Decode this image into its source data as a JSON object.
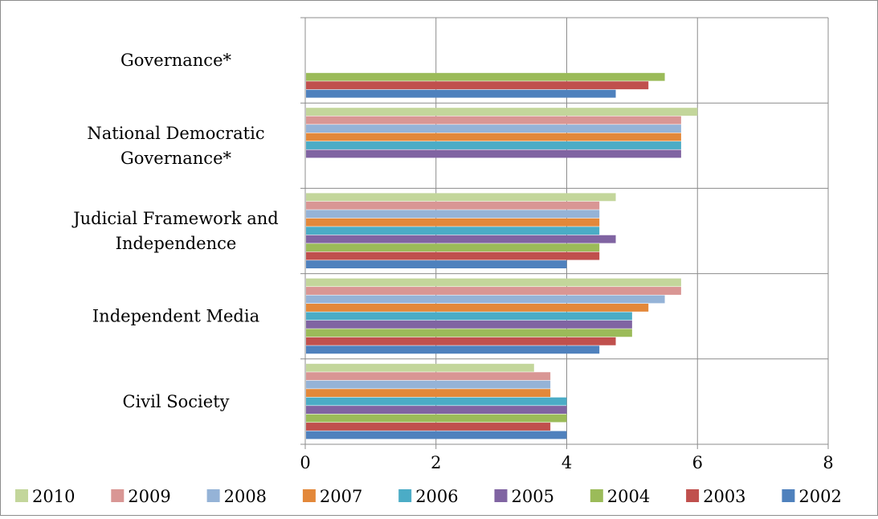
{
  "chart_data": {
    "type": "bar",
    "orientation": "horizontal",
    "title": "",
    "xlabel": "",
    "ylabel": "",
    "xlim": [
      0,
      8
    ],
    "x_ticks": [
      "0",
      "2",
      "4",
      "6",
      "8"
    ],
    "grid": "vertical-and-category-separators",
    "legend_position": "bottom",
    "categories": [
      "Governance*",
      "National Democratic Governance*",
      "Judicial Framework and Independence",
      "Independent Media",
      "Civil Society"
    ],
    "category_label_lines": [
      [
        "Governance*"
      ],
      [
        "National Democratic",
        "Governance*"
      ],
      [
        "Judicial Framework and",
        "Independence"
      ],
      [
        "Independent Media"
      ],
      [
        "Civil Society"
      ]
    ],
    "series": [
      {
        "name": "2010",
        "color": "#c3d69b",
        "values": [
          null,
          6.0,
          4.75,
          5.75,
          3.5
        ]
      },
      {
        "name": "2009",
        "color": "#d99694",
        "values": [
          null,
          5.75,
          4.5,
          5.75,
          3.75
        ]
      },
      {
        "name": "2008",
        "color": "#95b3d7",
        "values": [
          null,
          5.75,
          4.5,
          5.5,
          3.75
        ]
      },
      {
        "name": "2007",
        "color": "#e3883a",
        "values": [
          null,
          5.75,
          4.5,
          5.25,
          3.75
        ]
      },
      {
        "name": "2006",
        "color": "#4bacc6",
        "values": [
          null,
          5.75,
          4.5,
          5.0,
          4.0
        ]
      },
      {
        "name": "2005",
        "color": "#8064a2",
        "values": [
          null,
          5.75,
          4.75,
          5.0,
          4.0
        ]
      },
      {
        "name": "2004",
        "color": "#9bbb59",
        "values": [
          5.5,
          null,
          4.5,
          5.0,
          4.0
        ]
      },
      {
        "name": "2003",
        "color": "#c0504d",
        "values": [
          5.25,
          null,
          4.5,
          4.75,
          3.75
        ]
      },
      {
        "name": "2002",
        "color": "#4f81bd",
        "values": [
          4.75,
          null,
          4.0,
          4.5,
          4.0
        ]
      }
    ]
  }
}
